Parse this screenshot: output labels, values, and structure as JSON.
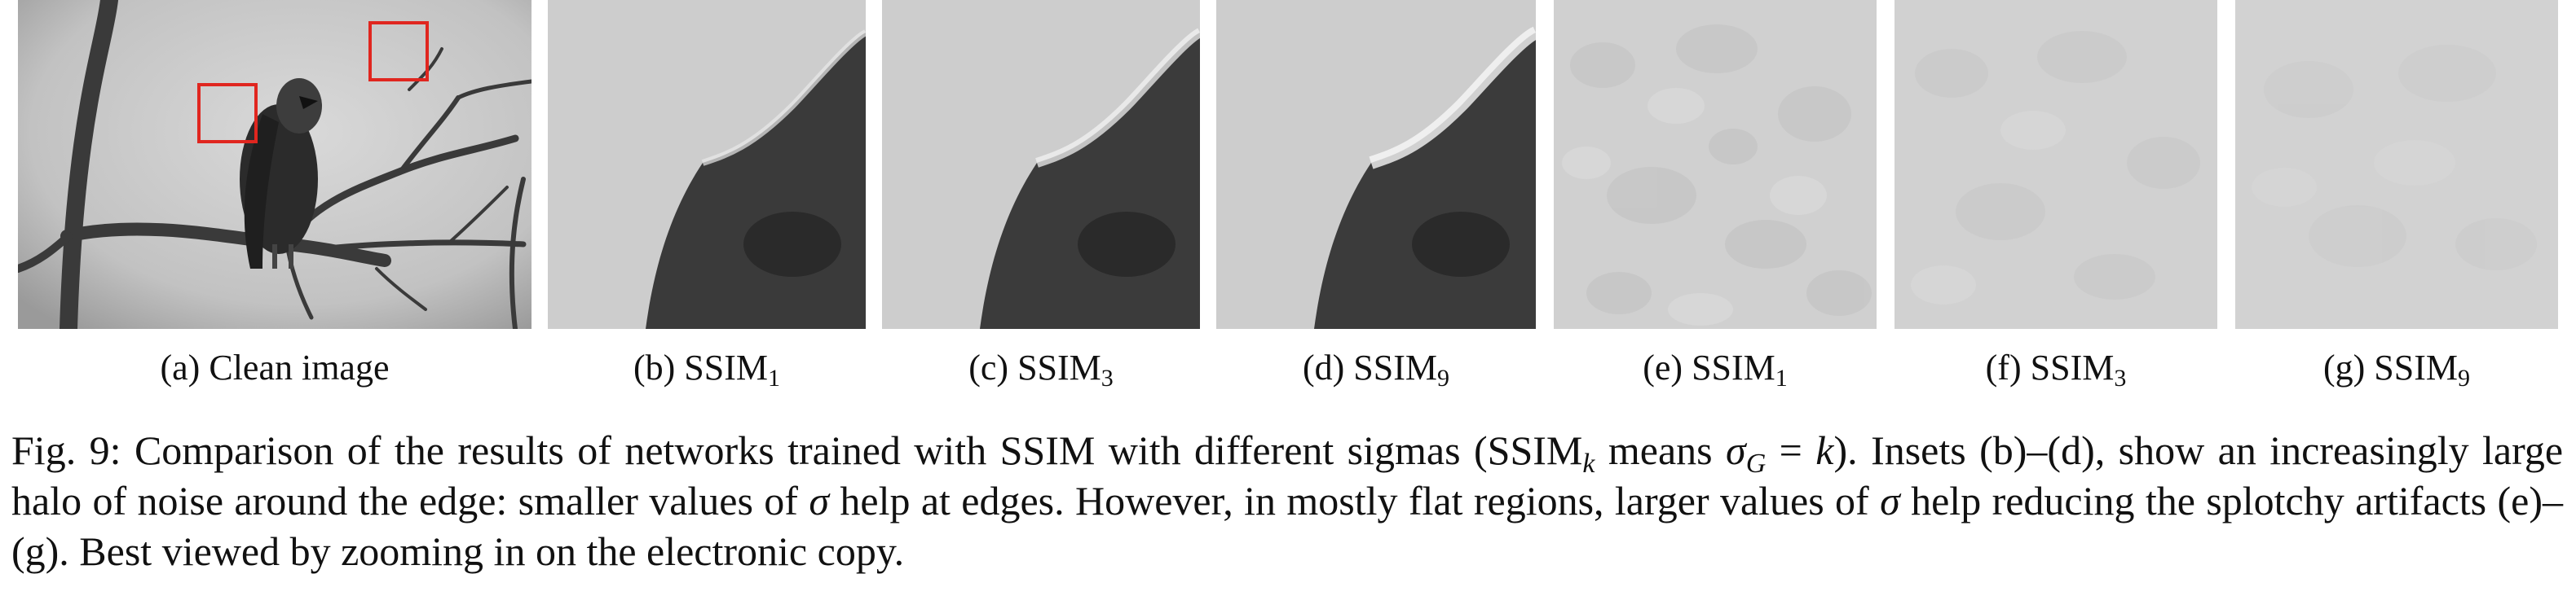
{
  "panels": [
    {
      "id": "a",
      "label_prefix": "(a)",
      "label_text": "Clean image",
      "subscript": ""
    },
    {
      "id": "b",
      "label_prefix": "(b)",
      "label_text": "SSIM",
      "subscript": "1"
    },
    {
      "id": "c",
      "label_prefix": "(c)",
      "label_text": "SSIM",
      "subscript": "3"
    },
    {
      "id": "d",
      "label_prefix": "(d)",
      "label_text": "SSIM",
      "subscript": "9"
    },
    {
      "id": "e",
      "label_prefix": "(e)",
      "label_text": "SSIM",
      "subscript": "1"
    },
    {
      "id": "f",
      "label_prefix": "(f)",
      "label_text": "SSIM",
      "subscript": "3"
    },
    {
      "id": "g",
      "label_prefix": "(g)",
      "label_text": "SSIM",
      "subscript": "9"
    }
  ],
  "caption": {
    "fig_label": "Fig. 9:",
    "part1": "Comparison of the results of networks trained with SSIM with different sigmas (SSIM",
    "sub_k": "k",
    "part2": " means ",
    "sigma": "σ",
    "sub_G": "G",
    "part3": " = ",
    "k": "k",
    "part4": "). Insets (b)–(d), show an increasingly large halo of noise around the edge: smaller values of ",
    "sigma2": "σ",
    "part5": " help at edges. However, in mostly flat regions, larger values of ",
    "sigma3": "σ",
    "part6": " help reducing the splotchy artifacts (e)–(g). Best viewed by zooming in on the electronic copy."
  },
  "colors": {
    "inset_box": "#e0261f"
  }
}
